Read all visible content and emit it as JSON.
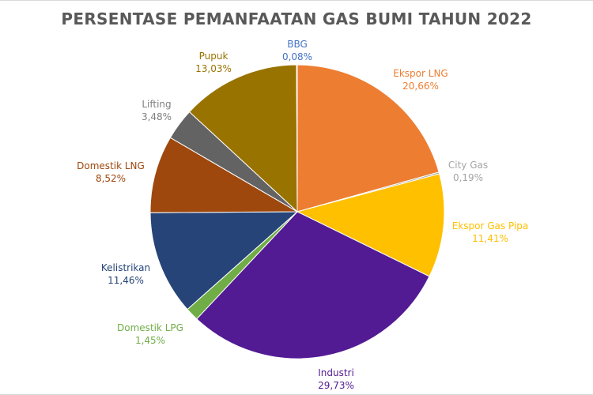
{
  "chart_data": {
    "type": "pie",
    "title": "PERSENTASE PEMANFAATAN GAS BUMI TAHUN 2022",
    "slices": [
      {
        "label": "Ekspor LNG",
        "value": 20.66,
        "value_text": "20,66%",
        "color": "#ED7D31"
      },
      {
        "label": "City Gas",
        "value": 0.19,
        "value_text": "0,19%",
        "color": "#A5A5A5"
      },
      {
        "label": "Ekspor Gas Pipa",
        "value": 11.41,
        "value_text": "11,41%",
        "color": "#FFC000"
      },
      {
        "label": "Industri",
        "value": 29.73,
        "value_text": "29,73%",
        "color": "#521B93"
      },
      {
        "label": "Domestik LPG",
        "value": 1.45,
        "value_text": "1,45%",
        "color": "#70AD47"
      },
      {
        "label": "Kelistrikan",
        "value": 11.46,
        "value_text": "11,46%",
        "color": "#264478"
      },
      {
        "label": "Domestik LNG",
        "value": 8.52,
        "value_text": "8,52%",
        "color": "#9E480E"
      },
      {
        "label": "Lifting",
        "value": 3.48,
        "value_text": "3,48%",
        "color": "#636363"
      },
      {
        "label": "Pupuk",
        "value": 13.03,
        "value_text": "13,03%",
        "color": "#997300"
      },
      {
        "label": "BBG",
        "value": 0.08,
        "value_text": "0,08%",
        "color": "#4472C4"
      }
    ],
    "label_colors": {
      "Ekspor LNG": "#ED7D31",
      "City Gas": "#A5A5A5",
      "Ekspor Gas Pipa": "#FFC000",
      "Industri": "#521B93",
      "Domestik LPG": "#70AD47",
      "Kelistrikan": "#264478",
      "Domestik LNG": "#9E480E",
      "Lifting": "#7F7F7F",
      "Pupuk": "#997300",
      "BBG": "#4472C4"
    },
    "legend": "none",
    "data_labels": "outside"
  }
}
